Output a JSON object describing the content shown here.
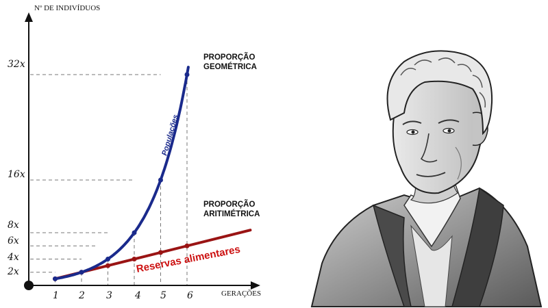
{
  "chart_data": {
    "type": "line",
    "ylabel": "Nº DE INDIVÍDUOS",
    "xlabel": "GERAÇÕES",
    "x_ticks": [
      "1",
      "2",
      "3",
      "4",
      "5",
      "6"
    ],
    "y_ticks": [
      "2x",
      "4x",
      "6x",
      "8x",
      "16x",
      "32x"
    ],
    "y_tick_values": [
      2,
      4,
      6,
      8,
      16,
      32
    ],
    "xlim": [
      0,
      7.3
    ],
    "ylim": [
      0,
      38
    ],
    "series": [
      {
        "name": "Populações",
        "color": "#1a2a8c",
        "x": [
          1,
          2,
          3,
          4,
          5,
          6
        ],
        "y": [
          1,
          2,
          4,
          8,
          16,
          32
        ]
      },
      {
        "name": "Reservas alimentares",
        "color": "#9a1414",
        "x": [
          1,
          2,
          3,
          4,
          5,
          6
        ],
        "y": [
          1,
          2,
          3,
          4,
          5,
          6
        ]
      }
    ],
    "annotations": {
      "geometric": [
        "PROPORÇÃO",
        "GEOMÉTRICA"
      ],
      "arithmetic": [
        "PROPORÇÃO",
        "ARITIMÉTRICA"
      ]
    }
  },
  "portrait": {
    "kind": "illustration",
    "subject": "portrait-engraving"
  }
}
